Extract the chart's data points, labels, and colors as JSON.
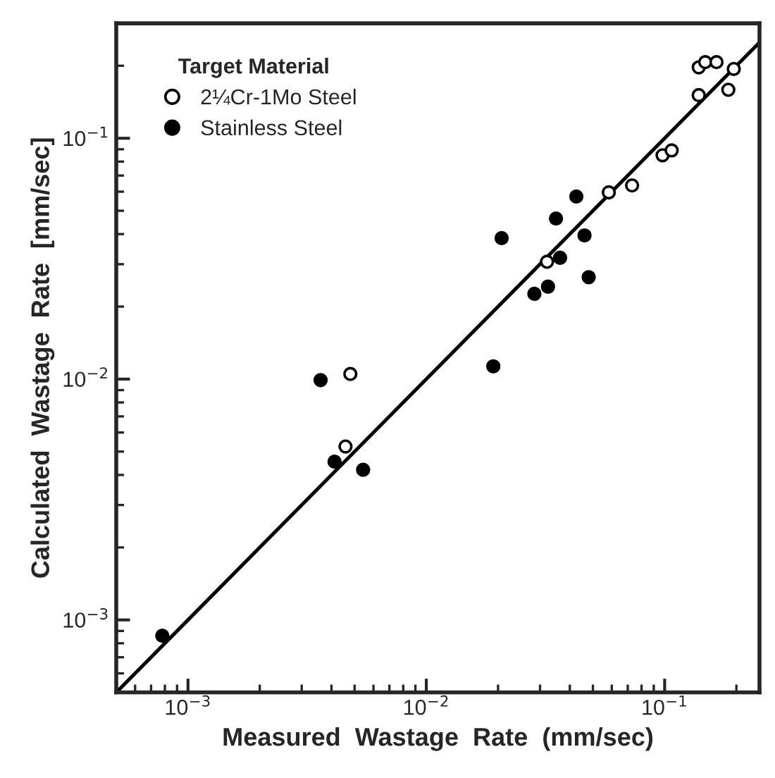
{
  "chart_data": {
    "type": "scatter",
    "xlabel": "Measured  Wastage  Rate  (mm/sec)",
    "ylabel": "Calculated  Wastage  Rate  [mm/sec]",
    "legend_title": "Target Material",
    "log": "xy",
    "grid": false,
    "legend": "top left",
    "xlim": [
      0.0005,
      0.25
    ],
    "ylim": [
      0.0005,
      0.3
    ],
    "xticks": [
      {
        "value": 0.001,
        "label": "10$^{−3}$"
      },
      {
        "value": 0.01,
        "label": "10$^{−2}$"
      },
      {
        "value": 0.1,
        "label": "10$^{−1}$"
      }
    ],
    "yticks": [
      {
        "value": 0.001,
        "label": "10$^{−3}$"
      },
      {
        "value": 0.01,
        "label": "10$^{−2}$"
      },
      {
        "value": 0.1,
        "label": "10$^{−1}$"
      }
    ],
    "series": [
      {
        "name": "2¼Cr-1Mo Steel",
        "marker": "circle",
        "color": "#ffffff",
        "x": [
          0.00458,
          0.0048,
          0.0321,
          0.0583,
          0.073,
          0.098,
          0.107,
          0.139,
          0.139,
          0.148,
          0.165,
          0.195,
          0.185
        ],
        "values": [
          0.00525,
          0.0105,
          0.0307,
          0.0596,
          0.0637,
          0.085,
          0.089,
          0.151,
          0.197,
          0.207,
          0.207,
          0.194,
          0.159
        ]
      },
      {
        "name": "Stainless Steel",
        "marker": "circle",
        "color": "#000000",
        "x": [
          0.00078,
          0.0036,
          0.00412,
          0.00543,
          0.0191,
          0.0207,
          0.0284,
          0.0324,
          0.0364,
          0.035,
          0.0426,
          0.0461,
          0.048
        ],
        "values": [
          0.00086,
          0.0099,
          0.00454,
          0.0042,
          0.0113,
          0.0385,
          0.0226,
          0.0242,
          0.0319,
          0.0464,
          0.0573,
          0.0395,
          0.0265
        ]
      },
      {
        "type": "line",
        "color": "#000000",
        "line_style": "solid",
        "x": [
          0.0005,
          0.25
        ],
        "values": [
          0.0005,
          0.25
        ]
      }
    ]
  }
}
